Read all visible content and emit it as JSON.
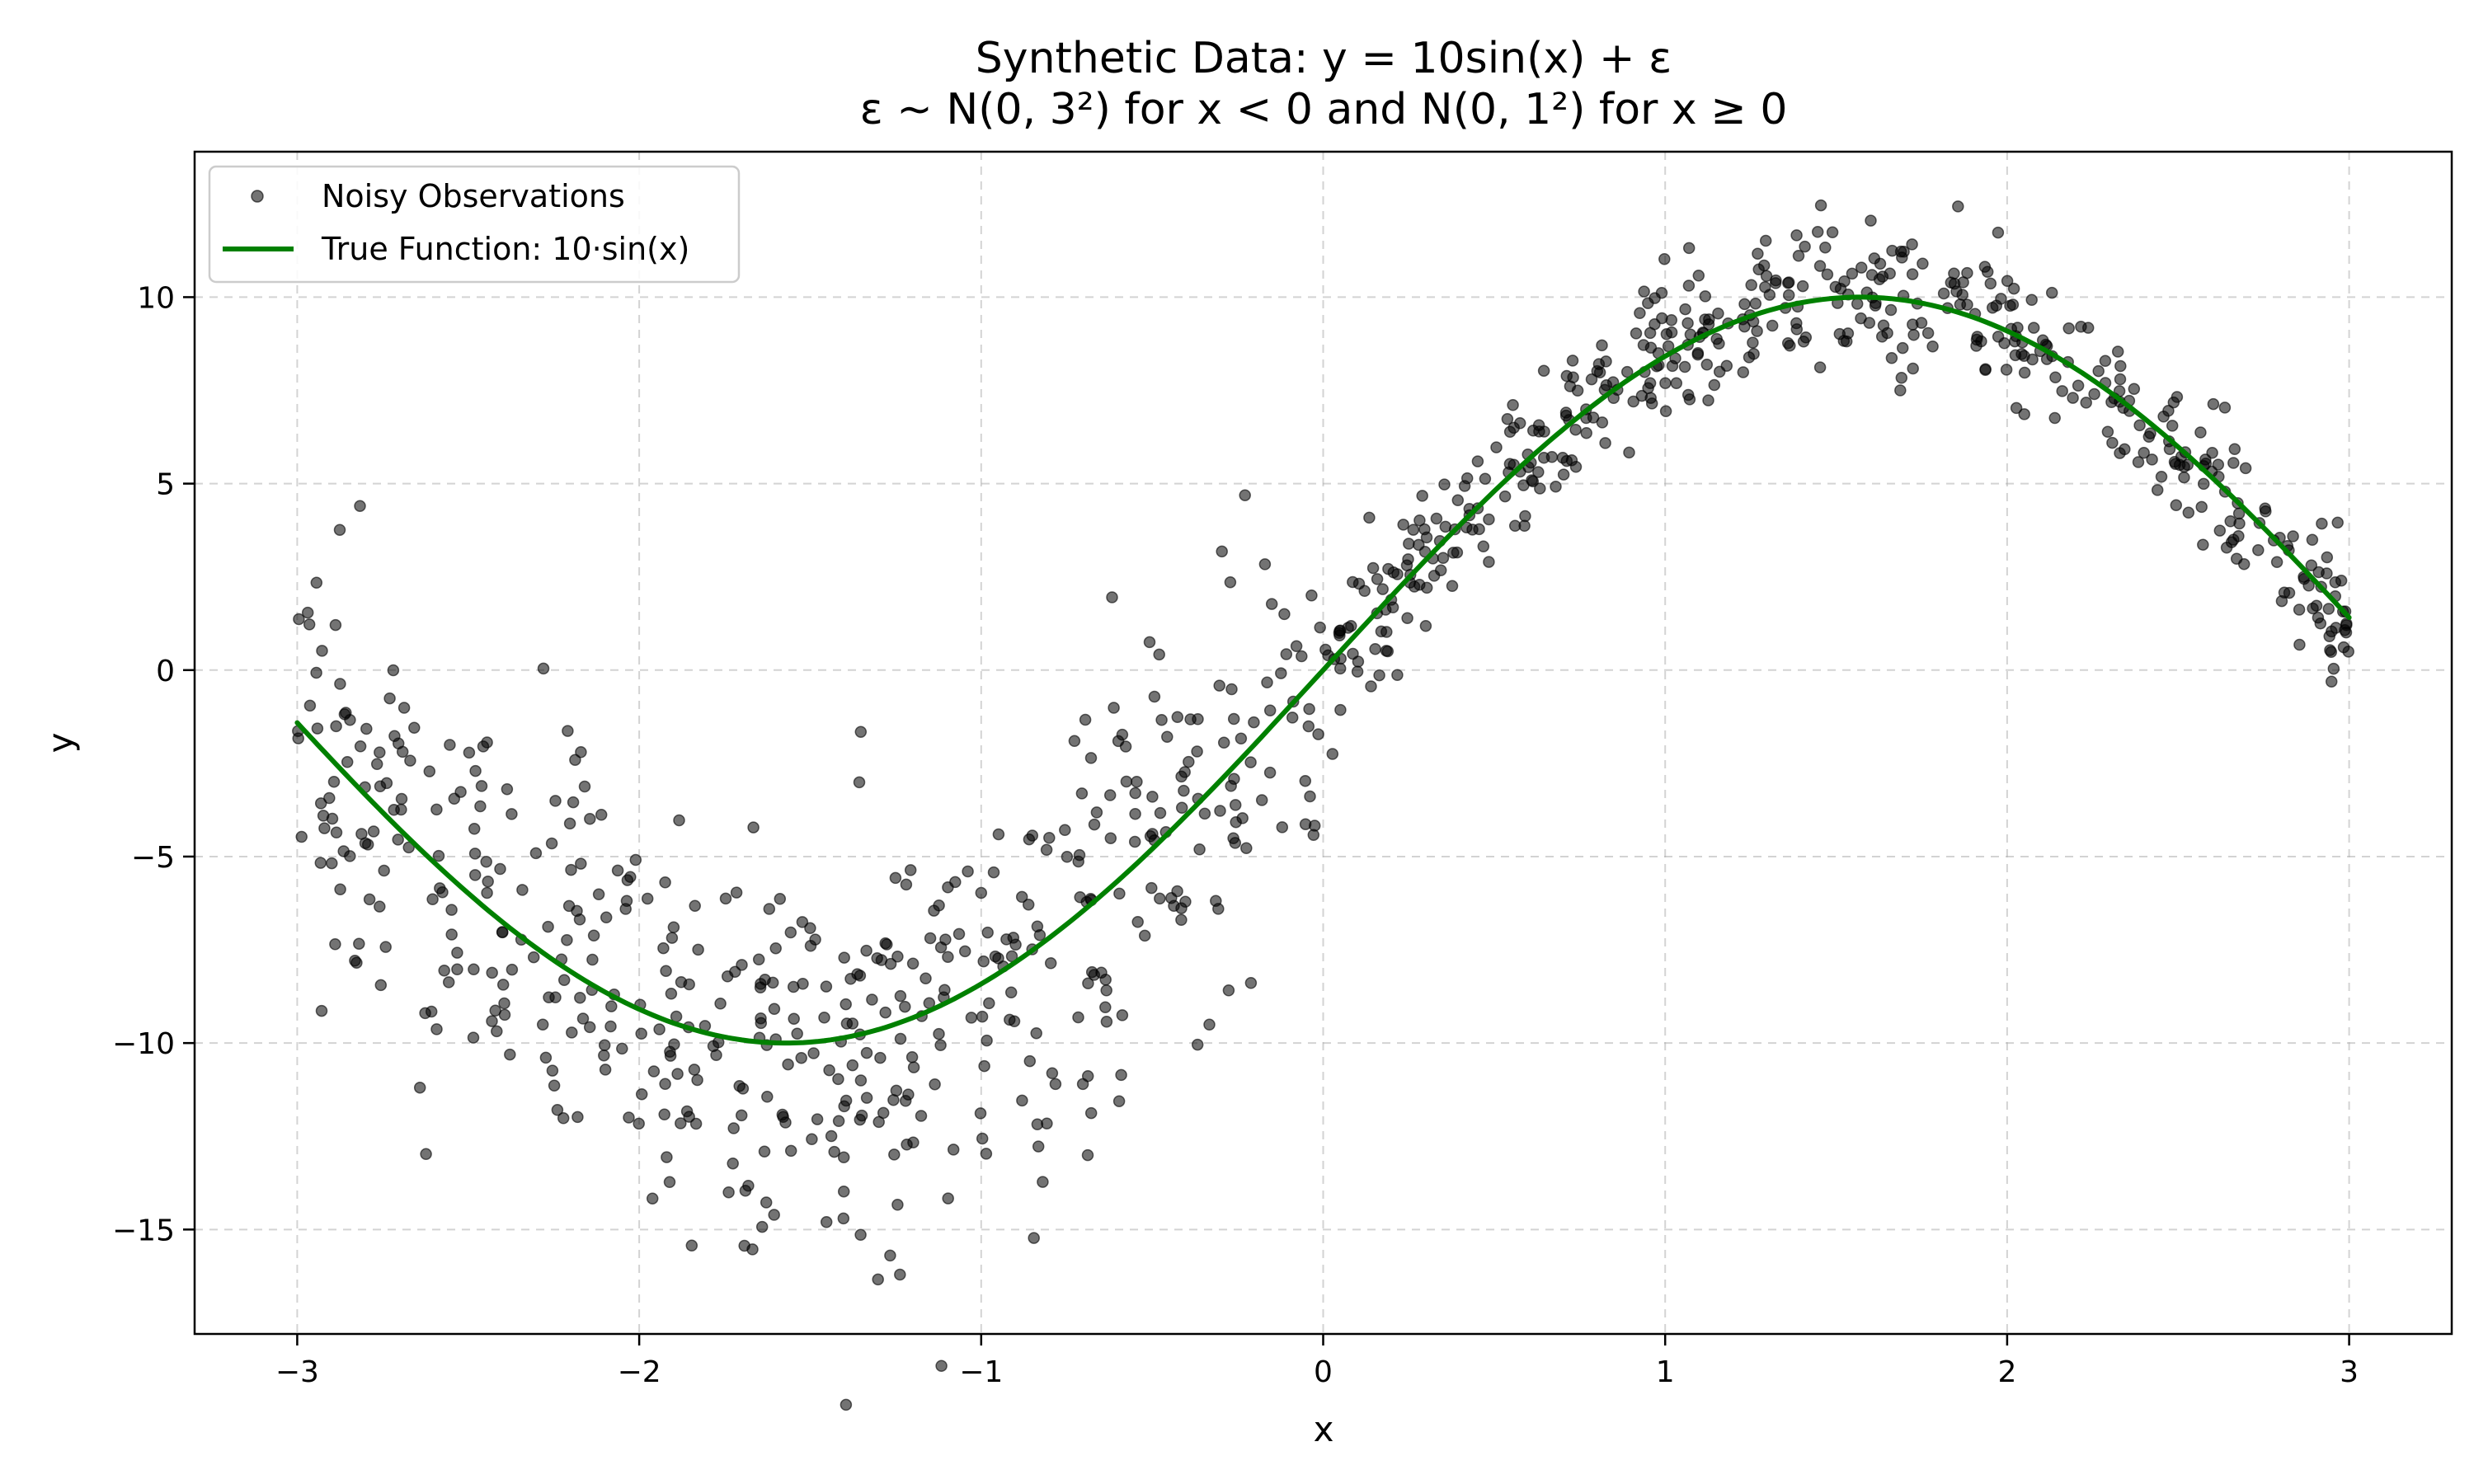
{
  "chart_data": {
    "type": "scatter",
    "title": "Synthetic Data: y = 10sin(x) + ε",
    "subtitle": "ε ~ N(0, 3²) for x < 0 and N(0, 1²) for x ≥ 0",
    "xlabel": "x",
    "ylabel": "y",
    "xlim": [
      -3.3,
      3.3
    ],
    "ylim": [
      -17.8,
      13.9
    ],
    "xticks": [
      -3,
      -2,
      -1,
      0,
      1,
      2,
      3
    ],
    "xtick_labels": [
      "−3",
      "−2",
      "−1",
      "0",
      "1",
      "2",
      "3"
    ],
    "yticks": [
      -15,
      -10,
      -5,
      0,
      5,
      10
    ],
    "ytick_labels": [
      "−15",
      "−10",
      "−5",
      "0",
      "5",
      "10"
    ],
    "grid": true,
    "legend_position": "top-left",
    "series": [
      {
        "name": "Noisy Observations",
        "kind": "scatter",
        "color": "#000000",
        "n_points": 1000,
        "x_range": [
          -3,
          3
        ],
        "noise_sd_x_lt_0": 3,
        "noise_sd_x_ge_0": 1,
        "function": "10sin(x)"
      },
      {
        "name": "True Function: 10·sin(x)",
        "kind": "line",
        "color": "#008000",
        "function": "10sin(x)",
        "x_range": [
          -3,
          3
        ]
      }
    ]
  }
}
